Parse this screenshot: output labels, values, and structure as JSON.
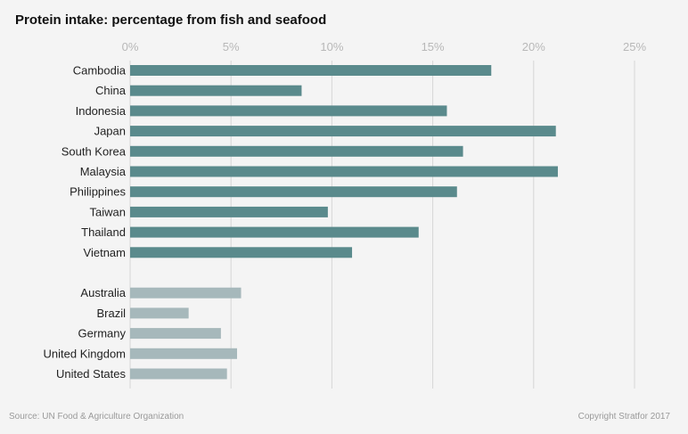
{
  "colors": {
    "primary_bar": "#5a8a8c",
    "secondary_bar": "#a6b8bb",
    "gridline": "#d6d6d6",
    "tick_text": "#b8b8b8",
    "background": "#f4f4f4"
  },
  "chart_data": {
    "type": "bar",
    "orientation": "horizontal",
    "title": "Protein intake: percentage from fish and seafood",
    "xlabel": "",
    "ylabel": "",
    "xlim": [
      0,
      25
    ],
    "x_ticks": [
      "0%",
      "5%",
      "10%",
      "15%",
      "20%",
      "25%"
    ],
    "x_tick_values": [
      0,
      5,
      10,
      15,
      20,
      25
    ],
    "x_axis_position": "top",
    "grid": true,
    "unit": "%",
    "groups": [
      {
        "categories": [
          "Cambodia",
          "China",
          "Indonesia",
          "Japan",
          "South Korea",
          "Malaysia",
          "Philippines",
          "Taiwan",
          "Thailand",
          "Vietnam"
        ],
        "values": [
          17.9,
          8.5,
          15.7,
          21.1,
          16.5,
          21.2,
          16.2,
          9.8,
          14.3,
          11.0
        ],
        "color": "#5a8a8c"
      },
      {
        "categories": [
          "Australia",
          "Brazil",
          "Germany",
          "United Kingdom",
          "United States"
        ],
        "values": [
          5.5,
          2.9,
          4.5,
          5.3,
          4.8
        ],
        "color": "#a6b8bb"
      }
    ]
  },
  "footer": {
    "source": "Source: UN Food & Agriculture Organization",
    "copyright": "Copyright Stratfor 2017"
  }
}
